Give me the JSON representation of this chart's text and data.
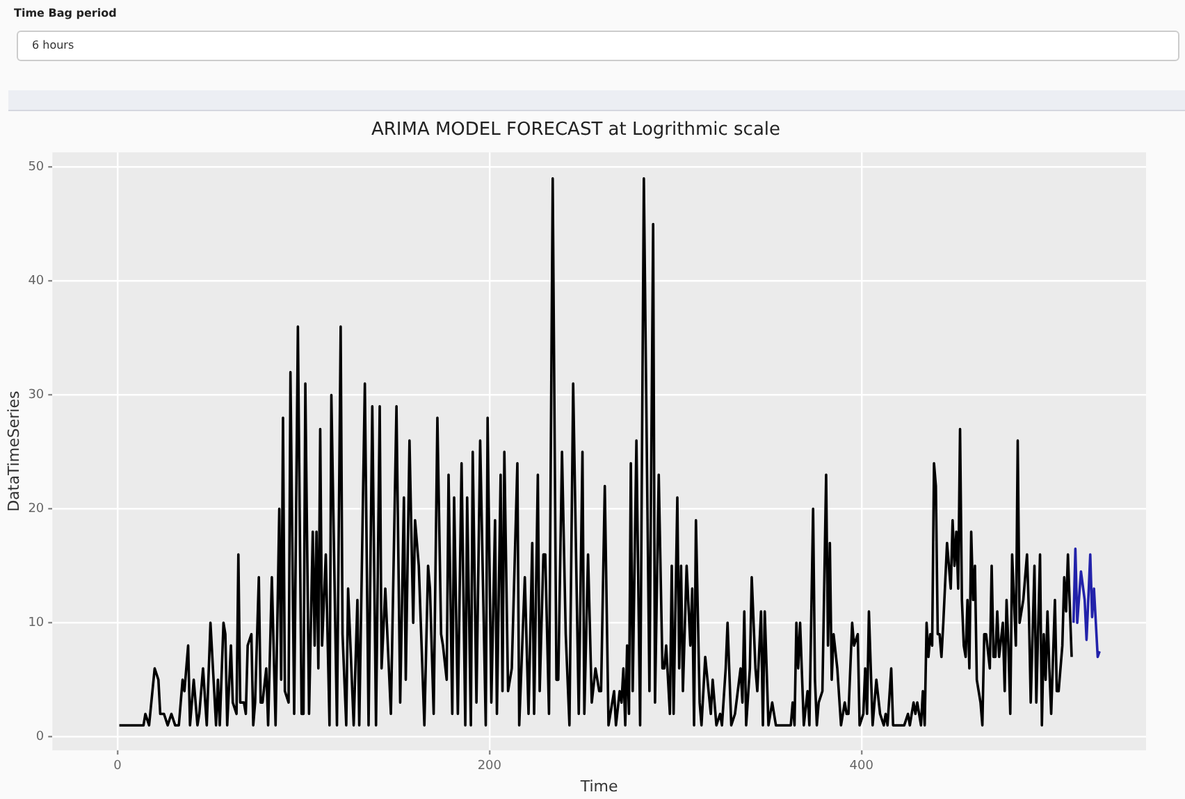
{
  "chart_data": {
    "type": "line",
    "title": "ARIMA MODEL FORECAST at Logrithmic scale",
    "xlabel": "Time",
    "ylabel": "DataTimeSeries",
    "annotations": [
      "Time Bag period",
      "6 hours"
    ],
    "xlim": [
      -35,
      553
    ],
    "xticks": [
      0,
      200,
      400
    ],
    "ylim": [
      -1.2,
      51.3
    ],
    "yticks": [
      0,
      10,
      20,
      30,
      40,
      50
    ],
    "grid": true,
    "legend": false,
    "marker": "none",
    "line_style": "solid",
    "series": [
      {
        "color": "#000000",
        "x": [
          1,
          14,
          15,
          17,
          20,
          22,
          23,
          25,
          27,
          29,
          31,
          33,
          35,
          36,
          38,
          39,
          41,
          43,
          44,
          46,
          48,
          50,
          53,
          54,
          55,
          57,
          58,
          59,
          61,
          62,
          64,
          65,
          66,
          68,
          69,
          70,
          72,
          73,
          74,
          76,
          77,
          78,
          80,
          81,
          83,
          85,
          87,
          88,
          89,
          90,
          92,
          93,
          95,
          97,
          99,
          100,
          101,
          103,
          105,
          106,
          107,
          108,
          109,
          110,
          112,
          114,
          115,
          118,
          120,
          121,
          123,
          124,
          127,
          129,
          130,
          133,
          135,
          137,
          139,
          141,
          142,
          144,
          147,
          150,
          152,
          154,
          155,
          157,
          159,
          160,
          162,
          165,
          167,
          168,
          170,
          172,
          174,
          175,
          177,
          178,
          180,
          181,
          183,
          185,
          187,
          188,
          190,
          191,
          193,
          195,
          198,
          199,
          201,
          203,
          204,
          206,
          207,
          208,
          210,
          212,
          215,
          216,
          219,
          221,
          223,
          224,
          226,
          227,
          229,
          230,
          232,
          234,
          236,
          237,
          239,
          241,
          243,
          245,
          248,
          250,
          251,
          253,
          255,
          257,
          259,
          260,
          262,
          264,
          267,
          268,
          270,
          271,
          272,
          273,
          274,
          275,
          276,
          277,
          279,
          281,
          283,
          286,
          288,
          289,
          291,
          293,
          294,
          295,
          297,
          298,
          299,
          301,
          302,
          303,
          304,
          306,
          308,
          309,
          310,
          311,
          313,
          314,
          316,
          319,
          320,
          322,
          324,
          325,
          327,
          328,
          330,
          332,
          335,
          336,
          337,
          338,
          340,
          341,
          343,
          344,
          346,
          347,
          348,
          350,
          351,
          352,
          354,
          362,
          363,
          364,
          365,
          366,
          367,
          369,
          371,
          372,
          374,
          375,
          376,
          377,
          379,
          381,
          382,
          383,
          384,
          385,
          387,
          389,
          391,
          392,
          393,
          395,
          396,
          398,
          399,
          401,
          402,
          403,
          404,
          406,
          408,
          410,
          412,
          413,
          414,
          416,
          417,
          423,
          425,
          426,
          428,
          429,
          430,
          432,
          433,
          434,
          435,
          436,
          437,
          438,
          439,
          440,
          441,
          442,
          443,
          444,
          446,
          448,
          449,
          450,
          451,
          452,
          453,
          454,
          455,
          456,
          457,
          458,
          459,
          460,
          461,
          462,
          464,
          465,
          466,
          467,
          469,
          470,
          471,
          472,
          473,
          474,
          476,
          477,
          478,
          479,
          480,
          481,
          483,
          484,
          485,
          487,
          489,
          490,
          491,
          493,
          494,
          496,
          497,
          498,
          499,
          500,
          501,
          502,
          504,
          505,
          506,
          508,
          509,
          510,
          511,
          513
        ],
        "values": [
          1,
          1,
          2,
          1,
          6,
          5,
          2,
          2,
          1,
          2,
          1,
          1,
          5,
          4,
          8,
          1,
          5,
          1,
          2,
          6,
          1,
          10,
          1,
          5,
          1,
          10,
          9,
          1,
          8,
          3,
          2,
          16,
          3,
          3,
          2,
          8,
          9,
          1,
          3,
          14,
          3,
          3,
          6,
          1,
          14,
          1,
          20,
          5,
          28,
          4,
          3,
          32,
          2,
          36,
          2,
          2,
          31,
          2,
          18,
          8,
          18,
          6,
          27,
          8,
          16,
          1,
          30,
          1,
          36,
          9,
          1,
          13,
          1,
          12,
          1,
          31,
          1,
          29,
          1,
          29,
          6,
          13,
          2,
          29,
          3,
          21,
          5,
          26,
          10,
          19,
          15,
          1,
          15,
          13,
          2,
          28,
          9,
          8,
          5,
          23,
          2,
          21,
          2,
          24,
          1,
          21,
          1,
          25,
          3,
          26,
          1,
          28,
          3,
          19,
          2,
          23,
          4,
          25,
          4,
          6,
          24,
          1,
          14,
          2,
          17,
          2,
          23,
          4,
          16,
          16,
          2,
          49,
          5,
          5,
          25,
          9,
          1,
          31,
          2,
          25,
          2,
          16,
          3,
          6,
          4,
          4,
          22,
          1,
          4,
          1,
          4,
          3,
          6,
          1,
          8,
          2,
          24,
          4,
          26,
          1,
          49,
          4,
          45,
          3,
          23,
          6,
          6,
          8,
          2,
          15,
          2,
          21,
          6,
          15,
          4,
          15,
          8,
          13,
          1,
          19,
          3,
          1,
          7,
          2,
          5,
          1,
          2,
          1,
          6,
          10,
          1,
          2,
          6,
          3,
          11,
          1,
          6,
          14,
          6,
          4,
          11,
          1,
          11,
          1,
          2,
          3,
          1,
          1,
          3,
          1,
          10,
          6,
          10,
          1,
          4,
          1,
          20,
          5,
          1,
          3,
          4,
          23,
          8,
          17,
          5,
          9,
          6,
          1,
          3,
          2,
          2,
          10,
          8,
          9,
          1,
          2,
          6,
          2,
          11,
          1,
          5,
          2,
          1,
          2,
          1,
          6,
          1,
          1,
          2,
          1,
          3,
          2,
          3,
          1,
          4,
          1,
          10,
          7,
          9,
          8,
          24,
          22,
          9,
          9,
          7,
          10,
          17,
          13,
          19,
          15,
          18,
          13,
          27,
          12,
          8,
          7,
          12,
          6,
          18,
          12,
          15,
          5,
          3,
          1,
          9,
          9,
          6,
          15,
          7,
          7,
          11,
          7,
          10,
          4,
          12,
          8,
          2,
          16,
          8,
          26,
          10,
          12,
          16,
          11,
          3,
          15,
          3,
          16,
          1,
          9,
          5,
          11,
          6,
          2,
          12,
          4,
          4,
          8,
          14,
          11,
          16,
          7
        ]
      },
      {
        "color": "#2222aa",
        "x": [
          514,
          515,
          516,
          518,
          520,
          521,
          523,
          524,
          525,
          526,
          527,
          528
        ],
        "values": [
          10,
          16.5,
          10,
          14.5,
          12,
          8.5,
          16,
          10.5,
          13,
          10,
          7,
          7.5
        ]
      }
    ]
  }
}
